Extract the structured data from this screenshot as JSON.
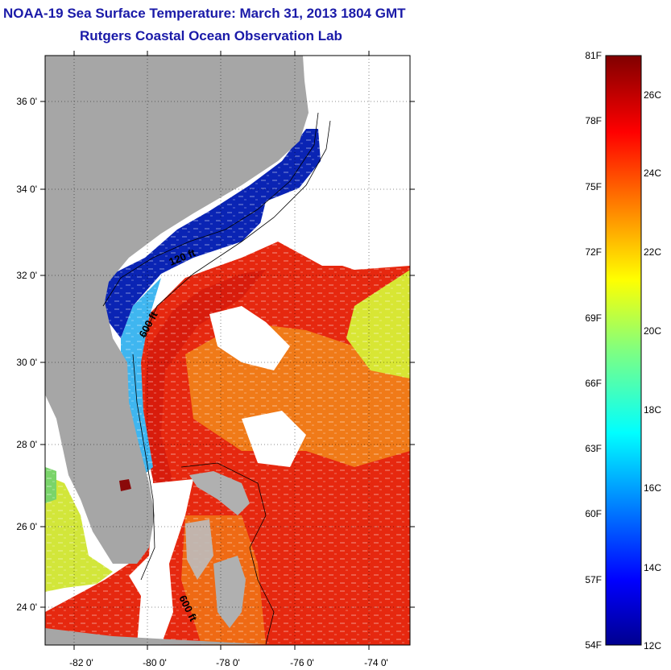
{
  "header": {
    "title": "NOAA-19 Sea Surface Temperature:  March 31, 2013 1804 GMT",
    "subtitle": "Rutgers Coastal Ocean Observation Lab"
  },
  "map": {
    "lat_labels": [
      "36 0'",
      "34 0'",
      "32 0'",
      "30 0'",
      "28 0'",
      "26 0'",
      "24 0'"
    ],
    "lon_labels": [
      "-82 0'",
      "-80 0'",
      "-78 0'",
      "-76 0'",
      "-74 0'"
    ],
    "contour_labels": [
      "120 ft",
      "600 ft",
      "600 ft"
    ],
    "colors": {
      "land": "#a6a6a6",
      "cloud": "#ffffff",
      "cold": "#0a1aa0",
      "warm": "#e02010"
    }
  },
  "colorbar": {
    "fahrenheit_labels": [
      "81F",
      "78F",
      "75F",
      "72F",
      "69F",
      "66F",
      "63F",
      "60F",
      "57F",
      "54F"
    ],
    "celsius_labels": [
      "26C",
      "24C",
      "22C",
      "20C",
      "18C",
      "16C",
      "14C",
      "12C"
    ],
    "range_f": [
      54,
      81
    ],
    "range_c": [
      12,
      27.2
    ],
    "colormap": "jet"
  }
}
